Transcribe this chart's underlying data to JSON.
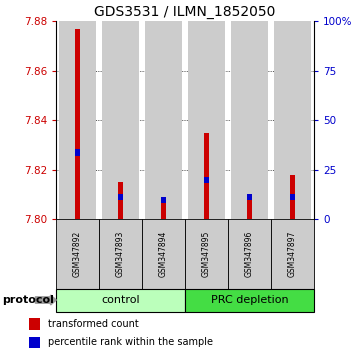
{
  "title": "GDS3531 / ILMN_1852050",
  "samples": [
    "GSM347892",
    "GSM347893",
    "GSM347894",
    "GSM347895",
    "GSM347896",
    "GSM347897"
  ],
  "red_values": [
    7.877,
    7.815,
    7.809,
    7.835,
    7.81,
    7.818
  ],
  "blue_values": [
    7.827,
    7.809,
    7.808,
    7.816,
    7.809,
    7.809
  ],
  "y_min": 7.8,
  "y_max": 7.88,
  "y_ticks_left": [
    7.8,
    7.82,
    7.84,
    7.86,
    7.88
  ],
  "right_ticks_pct": [
    0,
    25,
    50,
    75,
    100
  ],
  "right_tick_labels": [
    "0",
    "25",
    "50",
    "75",
    "100%"
  ],
  "groups": [
    {
      "label": "control",
      "samples": [
        0,
        1,
        2
      ],
      "color": "#bbffbb"
    },
    {
      "label": "PRC depletion",
      "samples": [
        3,
        4,
        5
      ],
      "color": "#44dd44"
    }
  ],
  "protocol_label": "protocol",
  "legend_red": "transformed count",
  "legend_blue": "percentile rank within the sample",
  "bar_bg_color": "#cccccc",
  "red_color": "#cc0000",
  "blue_color": "#0000cc",
  "title_fontsize": 10,
  "tick_fontsize": 7.5,
  "sample_fontsize": 5.5,
  "group_fontsize": 8,
  "legend_fontsize": 7
}
